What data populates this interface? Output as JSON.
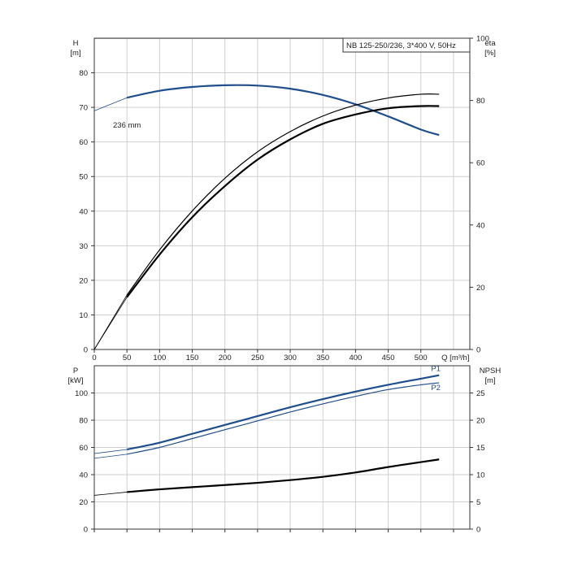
{
  "chart_data": [
    {
      "id": "head_efficiency",
      "type": "line",
      "title_box": "NB 125-250/236, 3*400 V, 50Hz",
      "ylabel_left": "H",
      "ylabel_left_unit": "[m]",
      "ylabel_right": "eta",
      "ylabel_right_unit": "[%]",
      "xlabel": "Q [m³/h]",
      "x_ticks": [
        "0",
        "50",
        "100",
        "150",
        "200",
        "250",
        "300",
        "350",
        "400",
        "450",
        "500"
      ],
      "y_ticks_left": [
        "0",
        "10",
        "20",
        "30",
        "40",
        "50",
        "60",
        "70",
        "80"
      ],
      "y_ticks_right": [
        "0",
        "20",
        "40",
        "60",
        "80",
        "100"
      ],
      "xlim": [
        0,
        575
      ],
      "ylim_left": [
        0,
        90
      ],
      "ylim_right": [
        0,
        100
      ],
      "grid": true,
      "annotation": "236 mm",
      "series": [
        {
          "color": "#1f4e8c",
          "axis": "left",
          "x": [
            0,
            50,
            100,
            150,
            200,
            250,
            300,
            350,
            400,
            450,
            500,
            528
          ],
          "y": [
            69,
            72.8,
            74.8,
            75.9,
            76.4,
            76.3,
            75.4,
            73.6,
            70.9,
            67.4,
            63.6,
            62
          ]
        },
        {
          "color": "#000000",
          "axis": "right",
          "x": [
            0,
            50,
            100,
            150,
            200,
            250,
            300,
            350,
            400,
            450,
            500,
            528
          ],
          "y": [
            0,
            17.5,
            32,
            44.5,
            55,
            63.5,
            70,
            75,
            78.5,
            80.8,
            82,
            82
          ]
        },
        {
          "color": "#000000",
          "axis": "right",
          "x": [
            0,
            50,
            100,
            150,
            200,
            250,
            300,
            350,
            400,
            450,
            500,
            528
          ],
          "y": [
            0,
            16.8,
            30.5,
            42.5,
            52.5,
            61,
            67.5,
            72.5,
            75.5,
            77.5,
            78.2,
            78.2
          ]
        }
      ]
    },
    {
      "id": "power_npsh",
      "type": "line",
      "ylabel_left": "P",
      "ylabel_left_unit": "[kW]",
      "ylabel_right": "NPSH",
      "ylabel_right_unit": "[m]",
      "y_ticks_left": [
        "0",
        "20",
        "40",
        "60",
        "80",
        "100"
      ],
      "y_ticks_right": [
        "0",
        "5",
        "10",
        "15",
        "20",
        "25"
      ],
      "xlim": [
        0,
        575
      ],
      "ylim_left": [
        0,
        120
      ],
      "ylim_right": [
        0,
        30
      ],
      "grid": true,
      "series": [
        {
          "name": "P1",
          "color": "#1f4e8c",
          "axis": "left",
          "x": [
            0,
            50,
            100,
            150,
            200,
            250,
            300,
            350,
            400,
            450,
            500,
            528
          ],
          "y": [
            55.5,
            58.5,
            63.5,
            70,
            76.5,
            83,
            89.5,
            95.5,
            101,
            106,
            110.5,
            113
          ]
        },
        {
          "name": "P2",
          "color": "#1f4e8c",
          "axis": "left",
          "x": [
            0,
            50,
            100,
            150,
            200,
            250,
            300,
            350,
            400,
            450,
            500,
            528
          ],
          "y": [
            52,
            55,
            60,
            66.5,
            73,
            79.5,
            86,
            92,
            97.5,
            102.5,
            106,
            107.5
          ]
        },
        {
          "color": "#000000",
          "axis": "right",
          "x": [
            0,
            50,
            100,
            150,
            200,
            250,
            300,
            350,
            400,
            450,
            500,
            528
          ],
          "y": [
            6.2,
            6.8,
            7.3,
            7.7,
            8.1,
            8.5,
            9.0,
            9.6,
            10.4,
            11.4,
            12.3,
            12.8
          ]
        }
      ]
    }
  ]
}
